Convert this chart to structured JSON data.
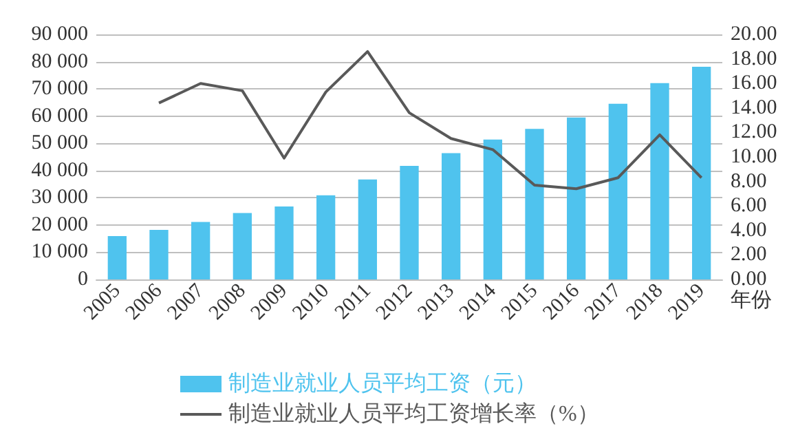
{
  "chart_data": {
    "type": "bar",
    "categories": [
      "2005",
      "2006",
      "2007",
      "2008",
      "2009",
      "2010",
      "2011",
      "2012",
      "2013",
      "2014",
      "2015",
      "2016",
      "2017",
      "2018",
      "2019"
    ],
    "xlabel": "年份",
    "series": [
      {
        "name": "制造业就业人员平均工资（元）",
        "color": "#4fc3ee",
        "values": [
          15900,
          18200,
          21100,
          24400,
          26800,
          30900,
          36700,
          41700,
          46400,
          51400,
          55300,
          59500,
          64500,
          72100,
          78100
        ]
      },
      {
        "name": "制造业就业人员平均工资增长率（%）",
        "type": "line",
        "axis": "y2",
        "color": "#595959",
        "values": [
          null,
          14.4,
          16.0,
          15.4,
          9.9,
          15.3,
          18.6,
          13.6,
          11.5,
          10.6,
          7.7,
          7.4,
          8.3,
          11.8,
          8.3
        ]
      }
    ],
    "ylim": [
      0,
      90000
    ],
    "yticks": [
      {
        "value": 0,
        "label": "0"
      },
      {
        "value": 10000,
        "label": "10 000"
      },
      {
        "value": 20000,
        "label": "20 000"
      },
      {
        "value": 30000,
        "label": "30 000"
      },
      {
        "value": 40000,
        "label": "40 000"
      },
      {
        "value": 50000,
        "label": "50 000"
      },
      {
        "value": 60000,
        "label": "60 000"
      },
      {
        "value": 70000,
        "label": "70 000"
      },
      {
        "value": 80000,
        "label": "80 000"
      },
      {
        "value": 90000,
        "label": "90 000"
      }
    ],
    "y2lim": [
      0,
      20
    ],
    "y2ticks": [
      {
        "value": 0,
        "label": "0.00"
      },
      {
        "value": 2,
        "label": "2.00"
      },
      {
        "value": 4,
        "label": "4.00"
      },
      {
        "value": 6,
        "label": "6.00"
      },
      {
        "value": 8,
        "label": "8.00"
      },
      {
        "value": 10,
        "label": "10.00"
      },
      {
        "value": 12,
        "label": "12.00"
      },
      {
        "value": 14,
        "label": "14.00"
      },
      {
        "value": 16,
        "label": "16.00"
      },
      {
        "value": 18,
        "label": "18.00"
      },
      {
        "value": 20,
        "label": "20.00"
      }
    ],
    "grid": "y",
    "legend": "bottom",
    "marker": "none",
    "line_style": "solid"
  }
}
